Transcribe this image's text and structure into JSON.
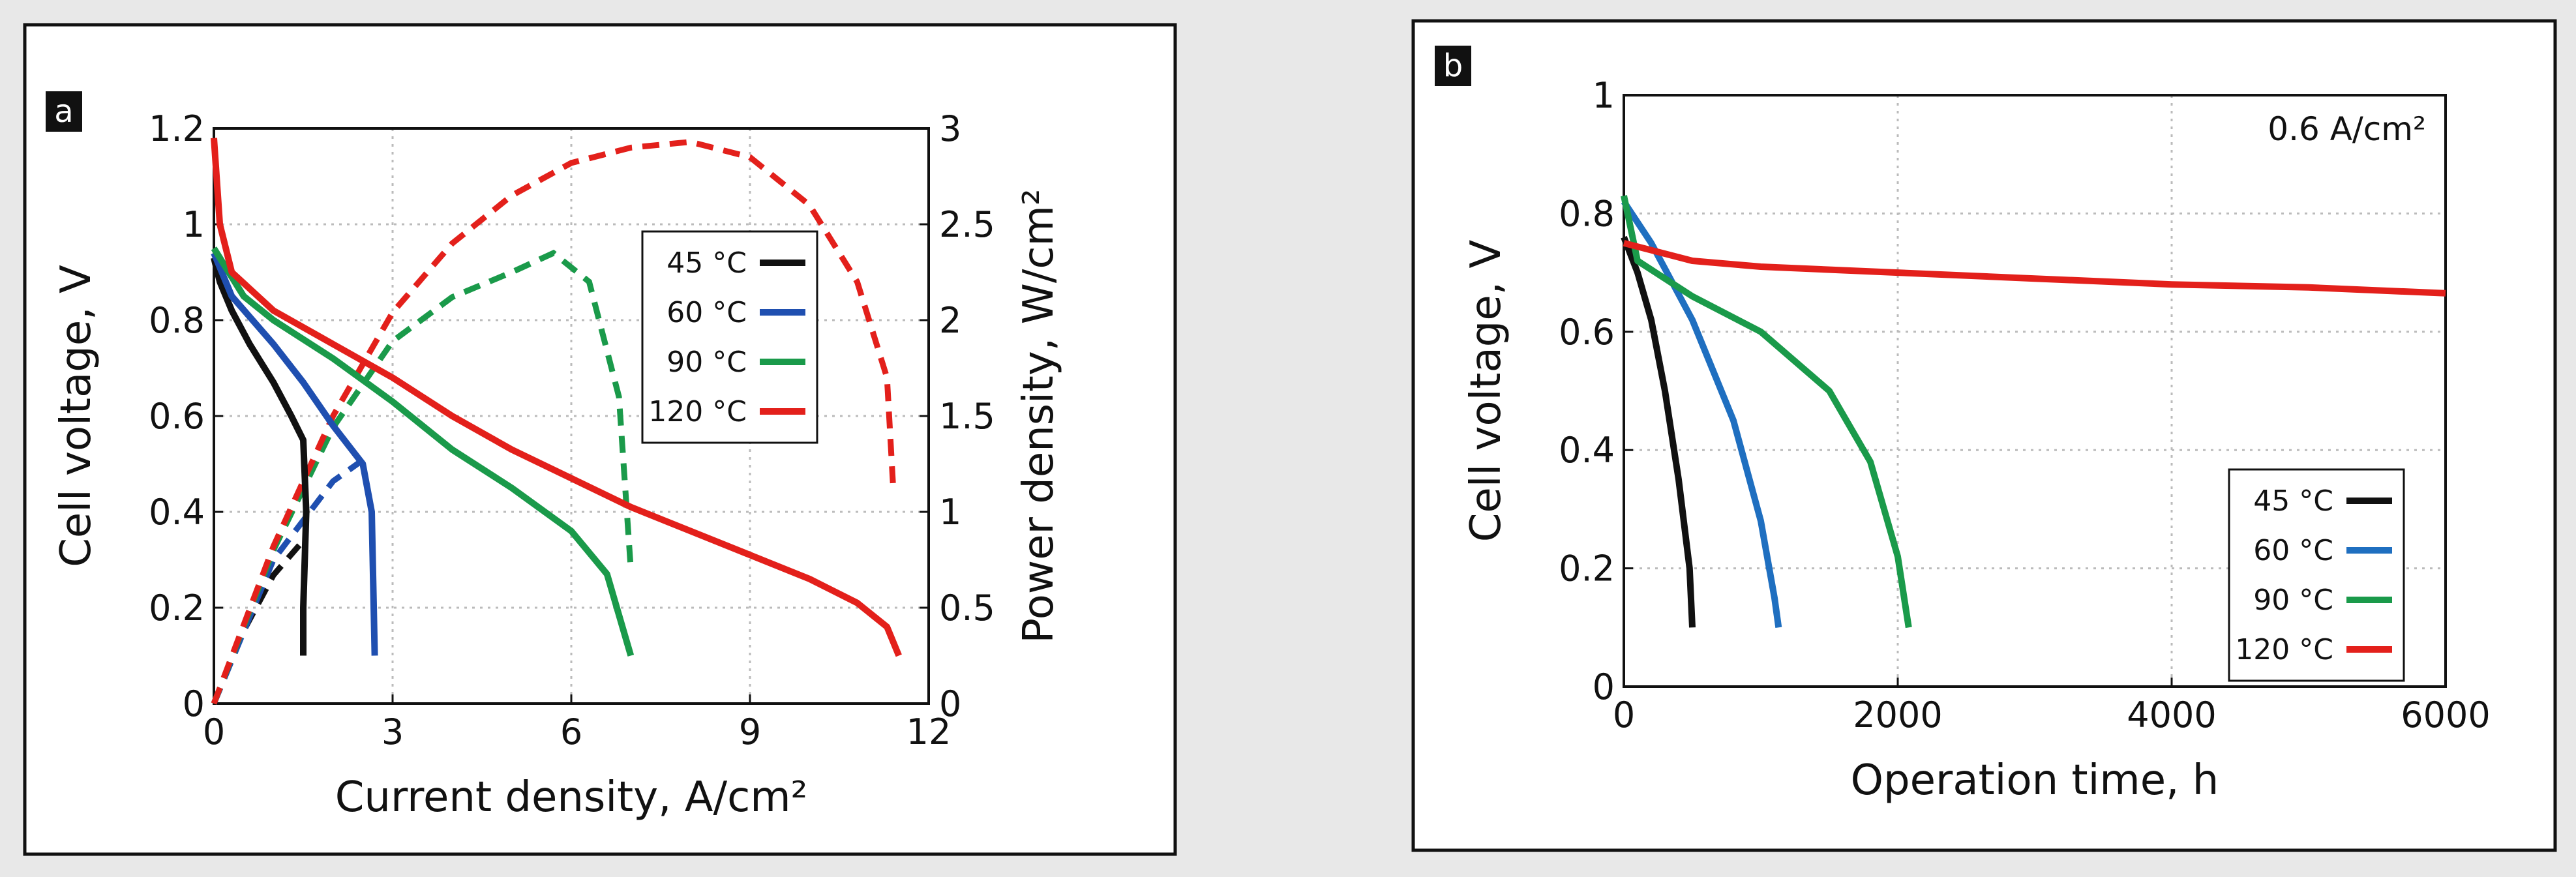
{
  "chart_data": [
    {
      "type": "line",
      "label": "a",
      "xlabel": "Current density, A/cm²",
      "ylabel": "Cell voltage, V",
      "y2label": "Power density, W/cm²",
      "xlim": [
        0,
        12
      ],
      "xticks": [
        0,
        3,
        6,
        9,
        12
      ],
      "ylim": [
        0,
        1.2
      ],
      "yticks": [
        0,
        0.2,
        0.4,
        0.6,
        0.8,
        1,
        1.2
      ],
      "y2lim": [
        0,
        3
      ],
      "y2ticks": [
        0,
        0.5,
        1,
        1.5,
        2,
        2.5,
        3
      ],
      "grid": true,
      "legend": "upper right",
      "series": [
        {
          "name": "45 °C",
          "color": "#111111",
          "x": [
            0,
            0.1,
            0.3,
            0.6,
            1.0,
            1.3,
            1.5,
            1.55,
            1.5,
            1.5
          ],
          "values": [
            0.93,
            0.88,
            0.82,
            0.75,
            0.67,
            0.6,
            0.55,
            0.4,
            0.2,
            0.1
          ],
          "power_x": [
            0,
            0.5,
            1.0,
            1.5
          ],
          "power_values": [
            0,
            0.38,
            0.67,
            0.85
          ]
        },
        {
          "name": "60 °C",
          "color": "#1f4fb0",
          "x": [
            0,
            0.3,
            1,
            1.5,
            2,
            2.5,
            2.65,
            2.7
          ],
          "values": [
            0.94,
            0.85,
            0.75,
            0.67,
            0.58,
            0.5,
            0.4,
            0.1
          ],
          "power_x": [
            0,
            1,
            2,
            2.5
          ],
          "power_values": [
            0,
            0.75,
            1.16,
            1.27
          ]
        },
        {
          "name": "90 °C",
          "color": "#1a9a4a",
          "x": [
            0,
            0.5,
            1,
            2,
            3,
            4,
            5,
            6,
            6.6,
            7
          ],
          "values": [
            0.95,
            0.85,
            0.8,
            0.72,
            0.63,
            0.53,
            0.45,
            0.36,
            0.27,
            0.1
          ],
          "power_x": [
            0,
            1,
            2,
            3,
            4,
            5,
            5.7,
            6.3,
            6.8,
            7
          ],
          "power_values": [
            0,
            0.8,
            1.44,
            1.89,
            2.12,
            2.25,
            2.35,
            2.2,
            1.6,
            0.7
          ]
        },
        {
          "name": "120 °C",
          "color": "#e3201b",
          "x": [
            0,
            0.1,
            0.3,
            1,
            2,
            3,
            4,
            5,
            6,
            7,
            8,
            9,
            10,
            10.8,
            11.3,
            11.5
          ],
          "values": [
            1.18,
            1.0,
            0.9,
            0.82,
            0.75,
            0.68,
            0.6,
            0.53,
            0.47,
            0.41,
            0.36,
            0.31,
            0.26,
            0.21,
            0.16,
            0.1
          ],
          "power_x": [
            0,
            1,
            2,
            3,
            4,
            5,
            6,
            7,
            8,
            9,
            10,
            10.8,
            11.3,
            11.4
          ],
          "power_values": [
            0,
            0.82,
            1.5,
            2.04,
            2.4,
            2.65,
            2.82,
            2.9,
            2.93,
            2.85,
            2.6,
            2.2,
            1.7,
            1.15
          ]
        }
      ]
    },
    {
      "type": "line",
      "label": "b",
      "xlabel": "Operation time, h",
      "ylabel": "Cell voltage, V",
      "annotation": "0.6 A/cm²",
      "xlim": [
        0,
        6000
      ],
      "xticks": [
        0,
        2000,
        4000,
        6000
      ],
      "ylim": [
        0,
        1
      ],
      "yticks": [
        0,
        0.2,
        0.4,
        0.6,
        0.8,
        1
      ],
      "grid": true,
      "legend": "lower right",
      "series": [
        {
          "name": "45 °C",
          "color": "#111111",
          "x": [
            0,
            100,
            200,
            300,
            400,
            480,
            500
          ],
          "values": [
            0.76,
            0.7,
            0.62,
            0.5,
            0.35,
            0.2,
            0.1
          ]
        },
        {
          "name": "60 °C",
          "color": "#1f6fc0",
          "x": [
            0,
            200,
            500,
            800,
            1000,
            1100,
            1130
          ],
          "values": [
            0.82,
            0.75,
            0.62,
            0.45,
            0.28,
            0.15,
            0.1
          ]
        },
        {
          "name": "90 °C",
          "color": "#1a9a4a",
          "x": [
            0,
            100,
            500,
            1000,
            1500,
            1800,
            2000,
            2080
          ],
          "values": [
            0.83,
            0.72,
            0.66,
            0.6,
            0.5,
            0.38,
            0.22,
            0.1
          ]
        },
        {
          "name": "120 °C",
          "color": "#e3201b",
          "x": [
            0,
            500,
            1000,
            2000,
            3000,
            4000,
            5000,
            6000
          ],
          "values": [
            0.75,
            0.72,
            0.71,
            0.7,
            0.69,
            0.68,
            0.675,
            0.665
          ]
        }
      ]
    }
  ]
}
